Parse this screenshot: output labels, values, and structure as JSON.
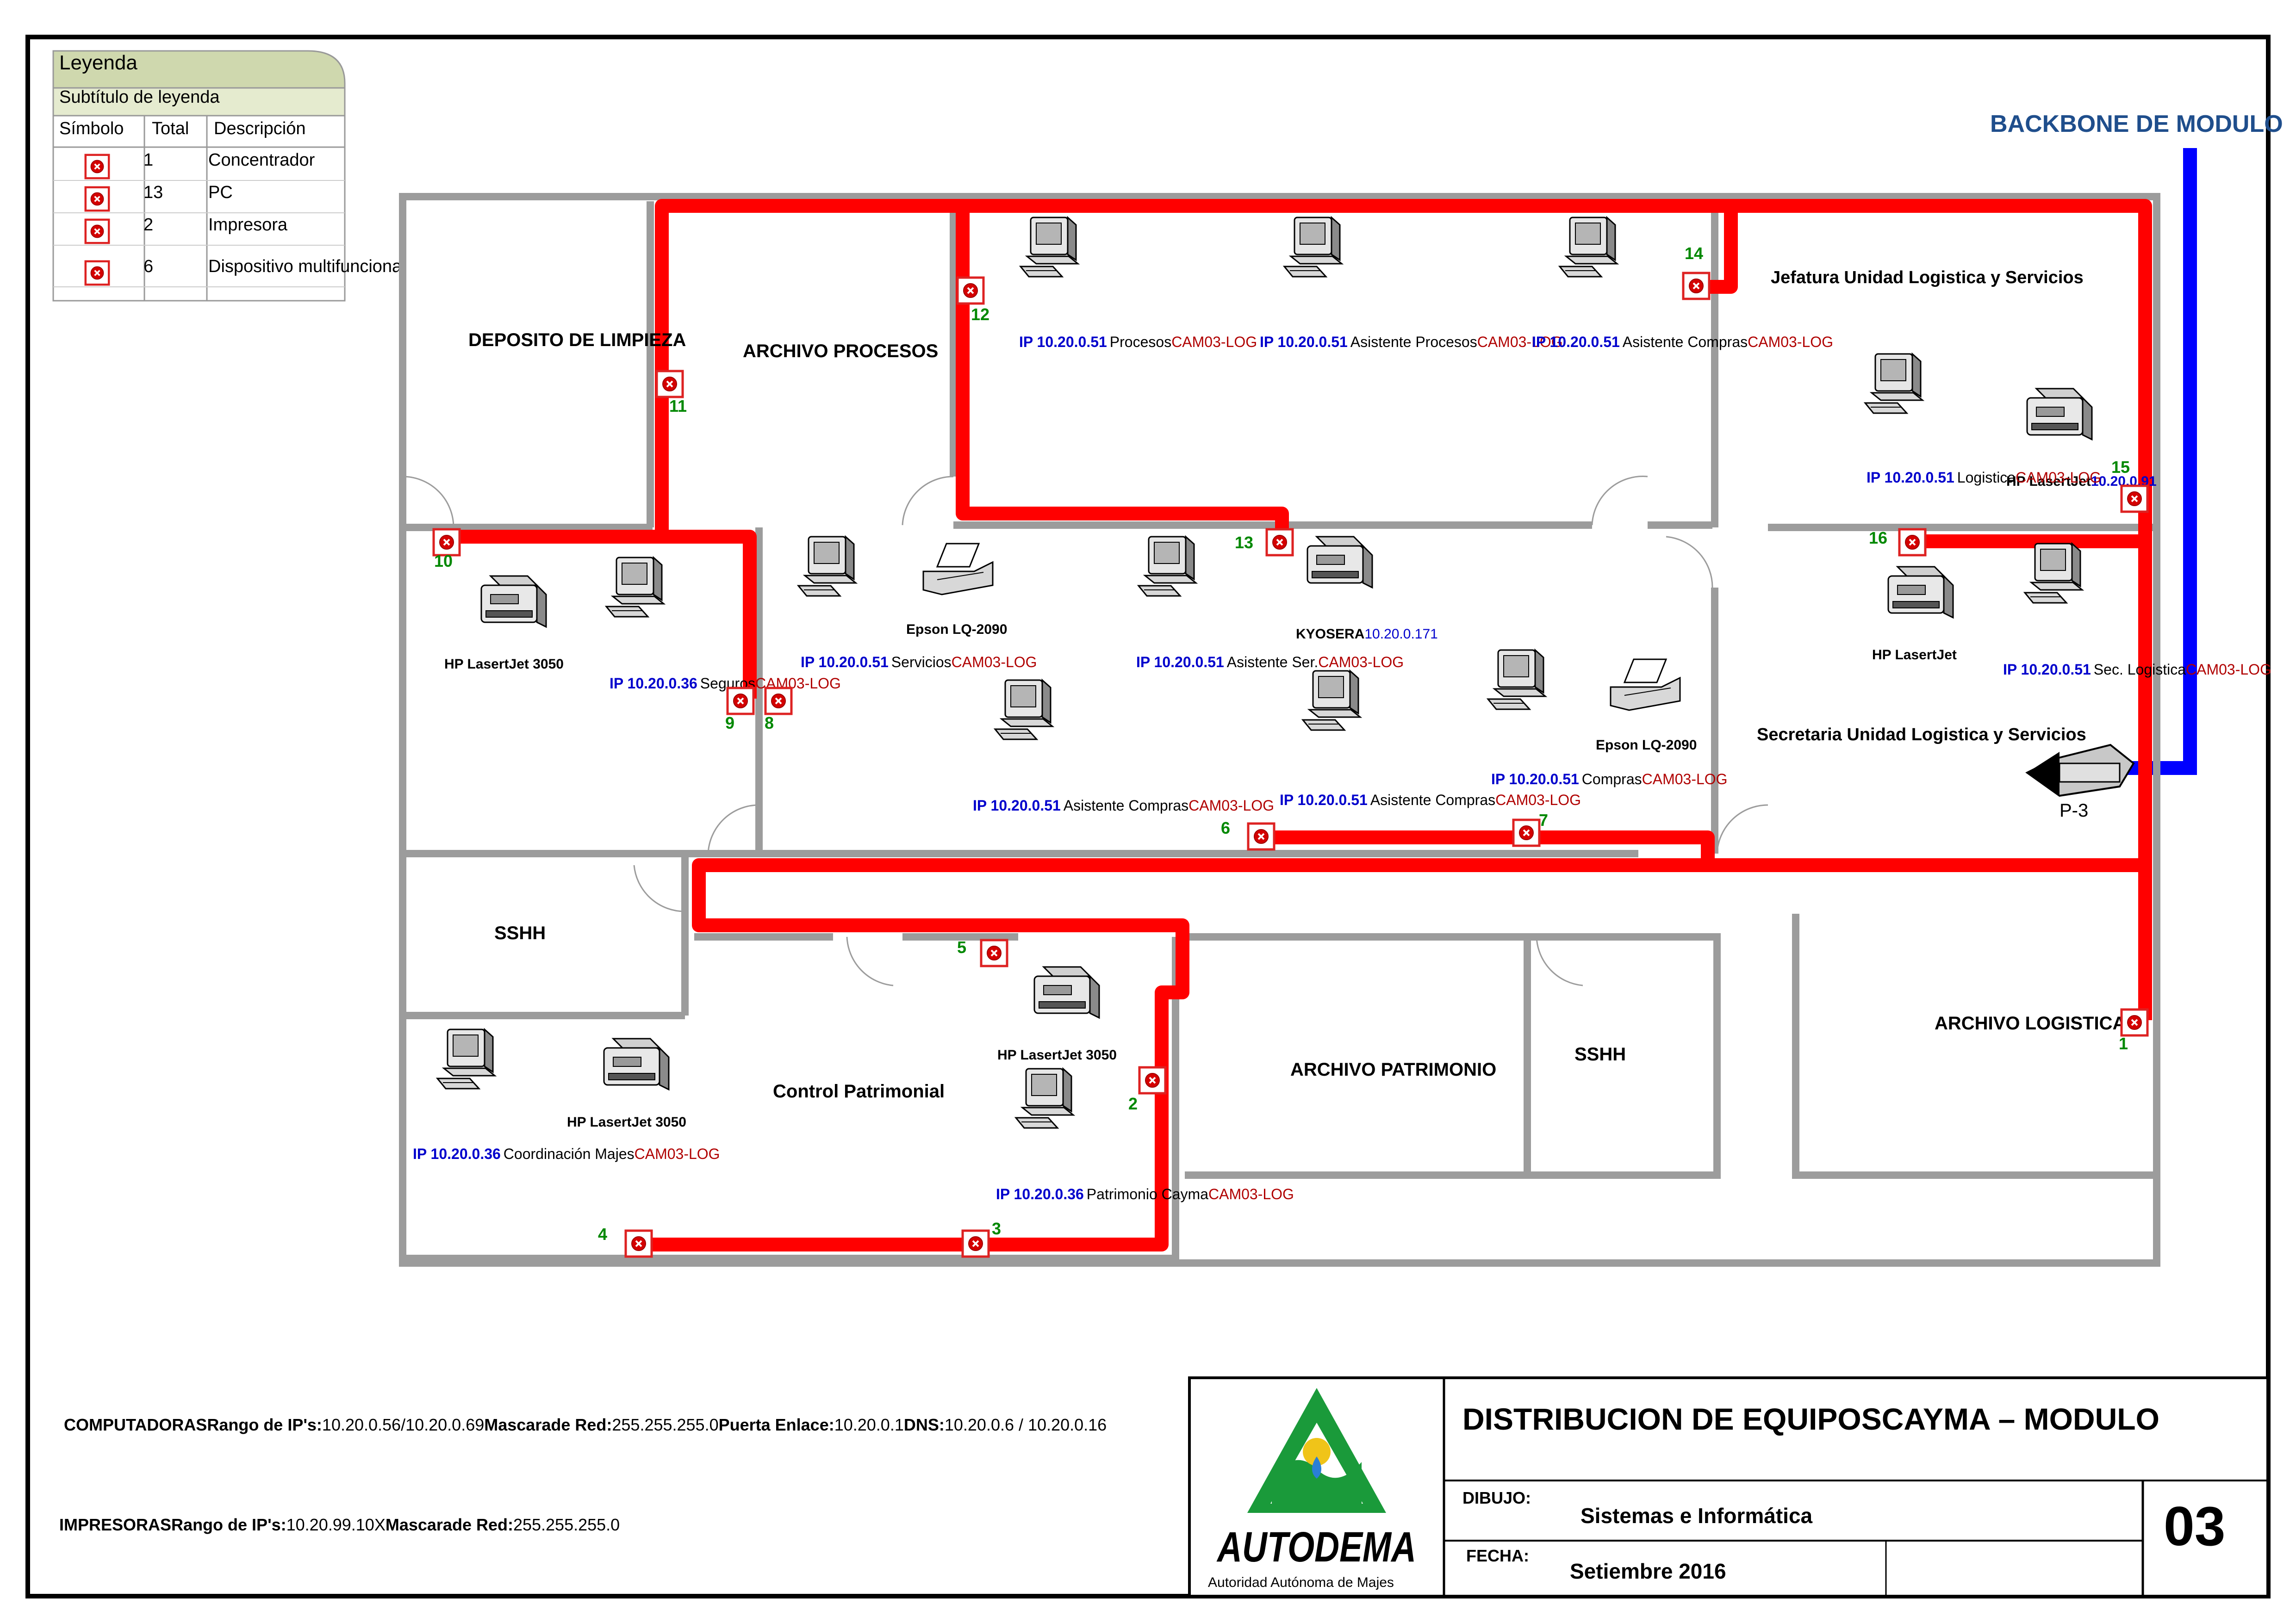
{
  "legend": {
    "title": "Leyenda",
    "subtitle": "Subtítulo de leyenda",
    "headers": [
      "Símbolo",
      "Total",
      "Descripción"
    ],
    "rows": [
      {
        "total": "1",
        "desc": "Concentrador"
      },
      {
        "total": "13",
        "desc": "PC"
      },
      {
        "total": "2",
        "desc": "Impresora"
      },
      {
        "total": "6",
        "desc": "Dispositivo multifuncional"
      }
    ]
  },
  "backbone_label": "BACKBONE DE MODULO",
  "rooms": {
    "deposito": "DEPOSITO DE LIMPIEZA",
    "archivo_procesos": "ARCHIVO PROCESOS",
    "jefatura": "Jefatura Unidad Logistica y Servicios",
    "secretaria": "Secretaria Unidad Logistica y Servicios",
    "sshh1": "SSHH",
    "control": "Control Patrimonial",
    "archivo_patrimonio": "ARCHIVO PATRIMONIO",
    "sshh2": "SSHH",
    "archivo_logistica": "ARCHIVO LOGISTICA"
  },
  "pcs": [
    {
      "ip": "IP 10.20.0.51",
      "name": "Procesos",
      "tag": "CAM03-LOG"
    },
    {
      "ip": "IP 10.20.0.51",
      "name": "Asistente Procesos",
      "tag": "CAM03-LOG"
    },
    {
      "ip": "IP 10.20.0.51",
      "name": "Asistente Compras",
      "tag": "CAM03-LOG"
    },
    {
      "ip": "IP 10.20.0.51",
      "name": "Logistica",
      "tag": "CAM03-LOG"
    },
    {
      "ip": "IP 10.20.0.36",
      "name": "Seguros",
      "tag": "CAM03-LOG"
    },
    {
      "ip": "IP 10.20.0.51",
      "name": "Servicios",
      "tag": "CAM03-LOG"
    },
    {
      "ip": "IP 10.20.0.51",
      "name": "Asistente Ser.",
      "tag": "CAM03-LOG"
    },
    {
      "ip": "IP 10.20.0.51",
      "name": "Sec. Logistica",
      "tag": "CAM03-LOG"
    },
    {
      "ip": "IP 10.20.0.51",
      "name": "Asistente Compras",
      "tag": "CAM03-LOG"
    },
    {
      "ip": "IP 10.20.0.51",
      "name": "Asistente Compras",
      "tag": "CAM03-LOG"
    },
    {
      "ip": "IP 10.20.0.51",
      "name": "Compras",
      "tag": "CAM03-LOG"
    },
    {
      "ip": "IP 10.20.0.36",
      "name": "Coordinación Majes",
      "tag": "CAM03-LOG"
    },
    {
      "ip": "IP 10.20.0.36",
      "name": "Patrimonio Cayma",
      "tag": "CAM03-LOG"
    }
  ],
  "printers": {
    "hp1": "HP LasertJet 3050",
    "epson1": "Epson LQ-2090",
    "kyosera_name": "KYOSERA",
    "kyosera_ip": "10.20.0.171",
    "hp_jef_name": "HP LasertJet",
    "hp_jef_ip": "10.20.0.91",
    "hp_sec": "HP LasertJet",
    "epson2": "Epson LQ-2090",
    "hp_ctrl1": "HP LasertJet 3050",
    "hp_ctrl2": "HP LasertJet 3050"
  },
  "points": [
    "1",
    "2",
    "3",
    "4",
    "5",
    "6",
    "7",
    "8",
    "9",
    "10",
    "11",
    "12",
    "13",
    "14",
    "15",
    "16"
  ],
  "switch_label": "P-3",
  "notes": {
    "comp": [
      {
        "b": "COMPUTADORAS",
        "t": ""
      },
      {
        "b": "Rango de IP's:",
        "t": "10.20.0.56/10.20.0.69"
      },
      {
        "b": "Mascarade Red:",
        "t": "255.255.255.0"
      },
      {
        "b": "Puerta Enlace:",
        "t": "10.20.0.1"
      },
      {
        "b": "DNS:",
        "t": "10.20.0.6 / 10.20.0.16"
      }
    ],
    "impr": [
      {
        "b": "IMPRESORAS",
        "t": ""
      },
      {
        "b": "Rango de IP's:",
        "t": "10.20.99.10X"
      },
      {
        "b": "Mascarade Red:",
        "t": "255.255.255.0"
      }
    ]
  },
  "title_block": {
    "title": "DISTRIBUCION DE EQUIPOSCAYMA – MODULO",
    "dibujo_label": "DIBUJO:",
    "dibujo_value": "Sistemas e Informática",
    "fecha_label": "FECHA:",
    "fecha_value": "Setiembre 2016",
    "sheet": "03",
    "logo_text": "AUTODEMA",
    "logo_sub": "Autoridad Autónoma de Majes"
  },
  "colors": {
    "cable": "#ff0000",
    "backbone": "#0000ff",
    "ip": "#0000cc",
    "tag": "#b00000",
    "point_num": "#008800",
    "wall": "#9c9c9c",
    "logo_green": "#1a9a3a"
  }
}
